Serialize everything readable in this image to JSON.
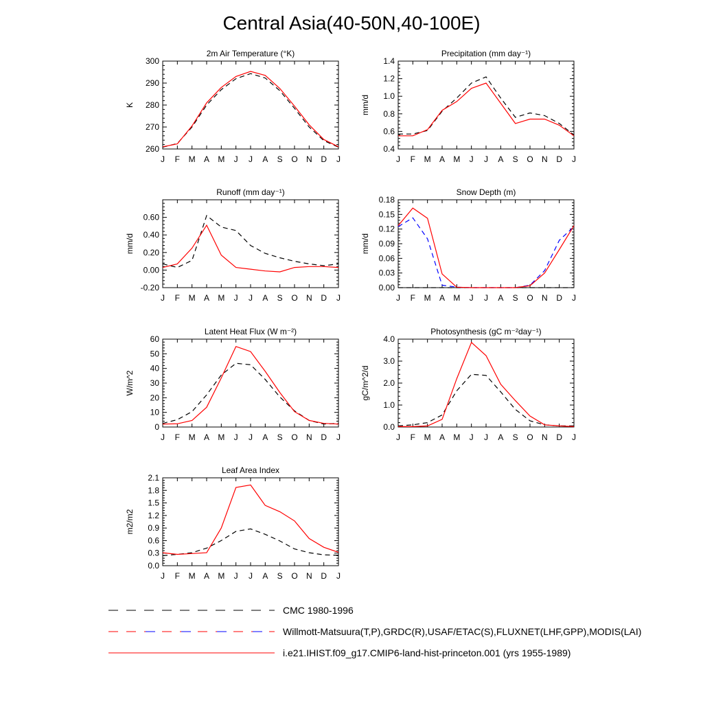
{
  "title": "Central Asia(40-50N,40-100E)",
  "months": [
    "J",
    "F",
    "M",
    "A",
    "M",
    "J",
    "J",
    "A",
    "S",
    "O",
    "N",
    "D",
    "J"
  ],
  "colors": {
    "obs": "#000000",
    "obs_alt": "#0000ff",
    "model": "#ff0000"
  },
  "legend": [
    {
      "label": "CMC 1980-1996",
      "style": "dashed-black"
    },
    {
      "label": "Willmott-Matsuura(T,P),GRDC(R),USAF/ETAC(S),FLUXNET(LHF,GPP),MODIS(LAI)",
      "style": "dashed-red-blue"
    },
    {
      "label": "i.e21.IHIST.f09_g17.CMIP6-land-hist-princeton.001 (yrs 1955-1989)",
      "style": "solid-red"
    }
  ],
  "chart_data": [
    {
      "type": "line",
      "title": "2m Air Temperature (°K)",
      "ylabel": "K",
      "ylim": [
        260,
        300
      ],
      "yticks": [
        "260",
        "270",
        "280",
        "290",
        "300"
      ],
      "series": [
        {
          "role": "obs",
          "dash": true,
          "values": [
            260.8,
            262.5,
            270.0,
            280.0,
            287.0,
            292.0,
            294.3,
            292.3,
            286.5,
            278.5,
            270.0,
            263.8,
            260.8
          ]
        },
        {
          "role": "model",
          "dash": false,
          "values": [
            261.0,
            262.3,
            270.5,
            281.0,
            288.0,
            293.0,
            295.3,
            293.5,
            287.5,
            279.5,
            271.0,
            264.3,
            261.0
          ]
        }
      ]
    },
    {
      "type": "line",
      "title": "Precipitation (mm day⁻¹)",
      "ylabel": "mm/d",
      "ylim": [
        0.4,
        1.4
      ],
      "yticks": [
        "0.4",
        "0.6",
        "0.8",
        "1.0",
        "1.2",
        "1.4"
      ],
      "series": [
        {
          "role": "obs",
          "dash": true,
          "values": [
            0.57,
            0.57,
            0.61,
            0.83,
            0.98,
            1.15,
            1.22,
            0.98,
            0.76,
            0.81,
            0.78,
            0.69,
            0.56
          ]
        },
        {
          "role": "model",
          "dash": false,
          "values": [
            0.55,
            0.55,
            0.62,
            0.84,
            0.94,
            1.09,
            1.15,
            0.92,
            0.69,
            0.74,
            0.74,
            0.67,
            0.55
          ]
        }
      ]
    },
    {
      "type": "line",
      "title": "Runoff (mm day⁻¹)",
      "ylabel": "mm/d",
      "ylim": [
        -0.2,
        0.8
      ],
      "yticks": [
        "-0.20",
        "0.00",
        "0.20",
        "0.40",
        "0.60"
      ],
      "ytick_values": [
        -0.2,
        0.0,
        0.2,
        0.4,
        0.6
      ],
      "series": [
        {
          "role": "obs",
          "dash": true,
          "values": [
            0.07,
            0.03,
            0.11,
            0.62,
            0.49,
            0.45,
            0.28,
            0.19,
            0.14,
            0.1,
            0.07,
            0.05,
            0.07
          ]
        },
        {
          "role": "model",
          "dash": false,
          "values": [
            0.03,
            0.07,
            0.25,
            0.51,
            0.17,
            0.03,
            0.01,
            -0.01,
            -0.02,
            0.03,
            0.04,
            0.04,
            0.03
          ]
        }
      ]
    },
    {
      "type": "line",
      "title": "Snow Depth (m)",
      "ylabel": "mm/d",
      "ylim": [
        0,
        0.18
      ],
      "yticks": [
        "0.00",
        "0.03",
        "0.06",
        "0.09",
        "0.12",
        "0.15",
        "0.18"
      ],
      "series": [
        {
          "role": "obs",
          "dash": true,
          "values": [
            0.0,
            0.0,
            0.0,
            0.0,
            0.0,
            0.0,
            0.0,
            0.0,
            0.0,
            0.0,
            0.0,
            0.0,
            0.0
          ]
        },
        {
          "role": "obs_alt",
          "dash": true,
          "values": [
            0.125,
            0.143,
            0.1,
            0.005,
            0.001,
            0.0,
            0.0,
            0.0,
            0.0,
            0.005,
            0.035,
            0.097,
            0.125
          ]
        },
        {
          "role": "model",
          "dash": false,
          "values": [
            0.127,
            0.163,
            0.142,
            0.028,
            0.001,
            0.0,
            0.0,
            0.0,
            0.0,
            0.004,
            0.03,
            0.078,
            0.127
          ]
        }
      ]
    },
    {
      "type": "line",
      "title": "Latent Heat Flux (W m⁻²)",
      "ylabel": "W/m^2",
      "ylim": [
        0,
        60
      ],
      "yticks": [
        "0",
        "10",
        "20",
        "30",
        "40",
        "50",
        "60"
      ],
      "series": [
        {
          "role": "obs",
          "dash": true,
          "values": [
            2.5,
            5,
            10.5,
            22,
            35.5,
            43.5,
            42.5,
            32.5,
            20.5,
            11,
            4.5,
            2,
            2.5
          ]
        },
        {
          "role": "model",
          "dash": false,
          "values": [
            2,
            2.2,
            4.5,
            13.5,
            33.5,
            55,
            51.5,
            38,
            23.5,
            10.5,
            4.5,
            2.5,
            2
          ]
        }
      ]
    },
    {
      "type": "line",
      "title": "Photosynthesis (gC m⁻²day⁻¹)",
      "ylabel": "gC/m^2/d",
      "ylim": [
        0,
        4
      ],
      "yticks": [
        "0.0",
        "1.0",
        "2.0",
        "3.0",
        "4.0"
      ],
      "series": [
        {
          "role": "obs",
          "dash": true,
          "values": [
            0.05,
            0.1,
            0.2,
            0.55,
            1.65,
            2.4,
            2.35,
            1.6,
            0.8,
            0.28,
            0.1,
            0.05,
            0.05
          ]
        },
        {
          "role": "model",
          "dash": false,
          "values": [
            0.02,
            0.02,
            0.05,
            0.35,
            2.2,
            3.85,
            3.25,
            1.95,
            1.2,
            0.5,
            0.1,
            0.05,
            0.02
          ]
        }
      ]
    },
    {
      "type": "line",
      "title": "Leaf Area Index",
      "ylabel": "m2/m2",
      "ylim": [
        0,
        2.1
      ],
      "yticks": [
        "0.0",
        "0.3",
        "0.6",
        "0.9",
        "1.2",
        "1.5",
        "1.8",
        "2.1"
      ],
      "series": [
        {
          "role": "obs",
          "dash": true,
          "values": [
            0.24,
            0.27,
            0.31,
            0.42,
            0.6,
            0.82,
            0.88,
            0.75,
            0.59,
            0.4,
            0.31,
            0.26,
            0.25
          ]
        },
        {
          "role": "model",
          "dash": false,
          "values": [
            0.31,
            0.27,
            0.29,
            0.31,
            0.9,
            1.87,
            1.93,
            1.44,
            1.29,
            1.07,
            0.65,
            0.44,
            0.32
          ]
        }
      ]
    }
  ]
}
